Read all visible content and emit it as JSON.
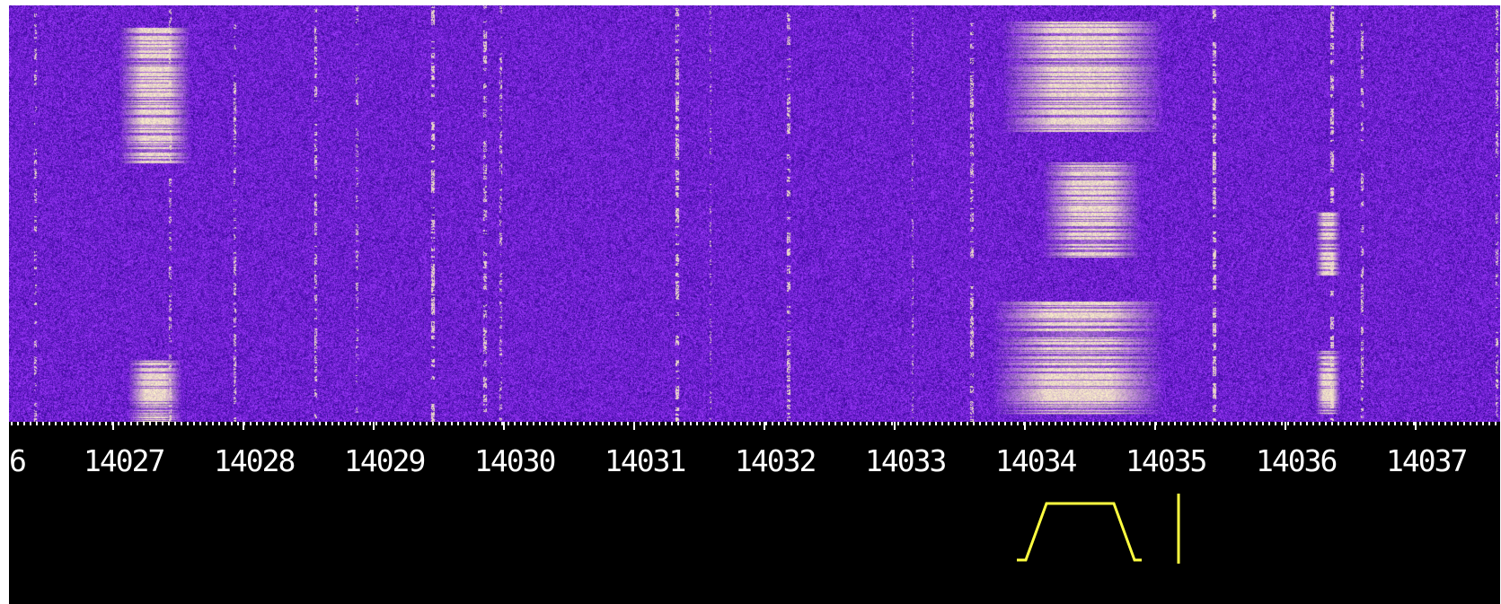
{
  "waterfall": {
    "colors": {
      "background": "#6a1fd8",
      "signal": "#fff6c0",
      "noise_dark": "#3a1080",
      "noise_light": "#b050ff"
    }
  },
  "scale": {
    "labels": [
      "6",
      "14027",
      "14028",
      "14029",
      "14030",
      "14031",
      "14032",
      "14033",
      "14034",
      "14035",
      "14036",
      "14037"
    ],
    "tick_color": "#ffffff",
    "background": "#000000"
  },
  "filter": {
    "color": "#ffff40",
    "low_khz": 14034.1,
    "high_khz": 14034.6,
    "marker_khz": 14035.0
  }
}
